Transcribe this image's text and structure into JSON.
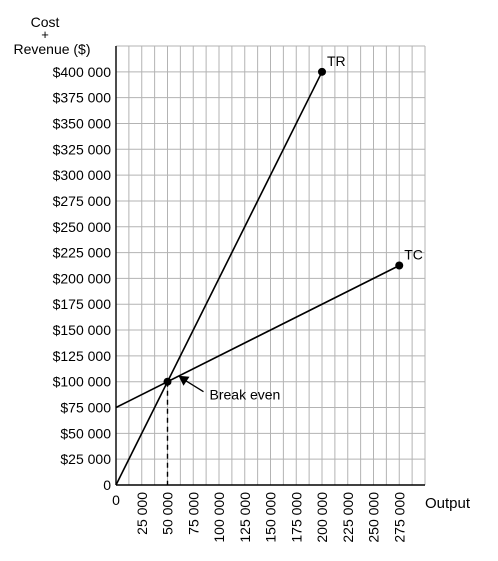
{
  "chart_data": {
    "type": "line",
    "ylabel_lines": [
      "Cost",
      "+",
      "Revenue ($)"
    ],
    "xlabel": "Output",
    "xlim": [
      0,
      300000
    ],
    "ylim": [
      0,
      425000
    ],
    "grid": true,
    "x_grid_step": 12500,
    "y_grid_step": 25000,
    "x_tick_values": [
      0,
      25000,
      50000,
      75000,
      100000,
      125000,
      150000,
      175000,
      200000,
      225000,
      250000,
      275000
    ],
    "x_tick_labels": [
      "0",
      "25 000",
      "50 000",
      "75 000",
      "100 000",
      "125 000",
      "150 000",
      "175 000",
      "200 000",
      "225 000",
      "250 000",
      "275 000"
    ],
    "y_tick_values": [
      0,
      25000,
      50000,
      75000,
      100000,
      125000,
      150000,
      175000,
      200000,
      225000,
      250000,
      275000,
      300000,
      325000,
      350000,
      375000,
      400000
    ],
    "y_tick_labels": [
      "0",
      "$25 000",
      "$50 000",
      "$75 000",
      "$100 000",
      "$125 000",
      "$150 000",
      "$175 000",
      "$200 000",
      "$225 000",
      "$250 000",
      "$275 000",
      "$300 000",
      "$325 000",
      "$350 000",
      "$375 000",
      "$400 000"
    ],
    "series": [
      {
        "name": "TR",
        "x": [
          0,
          200000
        ],
        "y": [
          0,
          400000
        ],
        "endpoint_marker": true
      },
      {
        "name": "TC",
        "x": [
          0,
          275000
        ],
        "y": [
          75000,
          212500
        ],
        "endpoint_marker": true
      }
    ],
    "annotations": [
      {
        "text": "Break even",
        "x": 50000,
        "y": 100000
      }
    ],
    "line_color": "#000000",
    "grid_color": "#b3b3b3"
  }
}
